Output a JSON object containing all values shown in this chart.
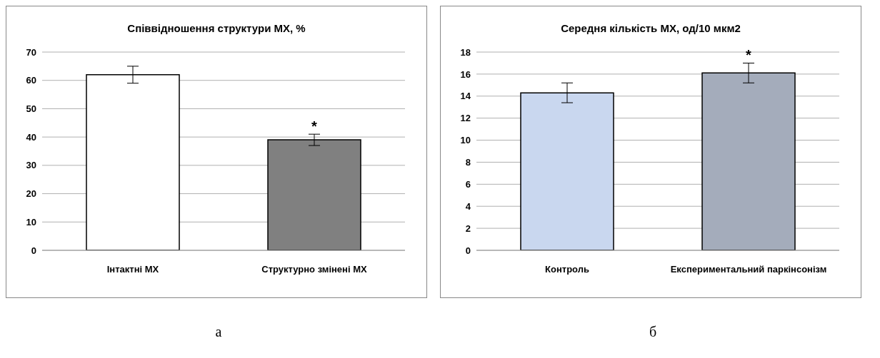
{
  "chart_data": [
    {
      "type": "bar",
      "title": "Співвідношення структури МХ, %",
      "categories": [
        "Інтактні МХ",
        "Структурно змінені МХ"
      ],
      "values": [
        62,
        39
      ],
      "colors": [
        "#ffffff",
        "#808080"
      ],
      "errors": [
        3,
        2
      ],
      "ylim": [
        0,
        70
      ],
      "yticks": [
        0,
        10,
        20,
        30,
        40,
        50,
        60,
        70
      ],
      "grid": "y",
      "annotations": [
        "*",
        "а"
      ]
    },
    {
      "type": "bar",
      "title": "Середня кількість МХ, од/10 мкм2",
      "categories": [
        "Контроль",
        "Експериментальний паркінсонізм"
      ],
      "values": [
        14.3,
        16.1
      ],
      "colors": [
        "#c9d7ef",
        "#a4acbb"
      ],
      "errors": [
        0.9,
        0.9
      ],
      "ylim": [
        0,
        18
      ],
      "yticks": [
        0,
        2,
        4,
        6,
        8,
        10,
        12,
        14,
        16,
        18
      ],
      "grid": "y",
      "annotations": [
        "*",
        "б"
      ]
    }
  ]
}
